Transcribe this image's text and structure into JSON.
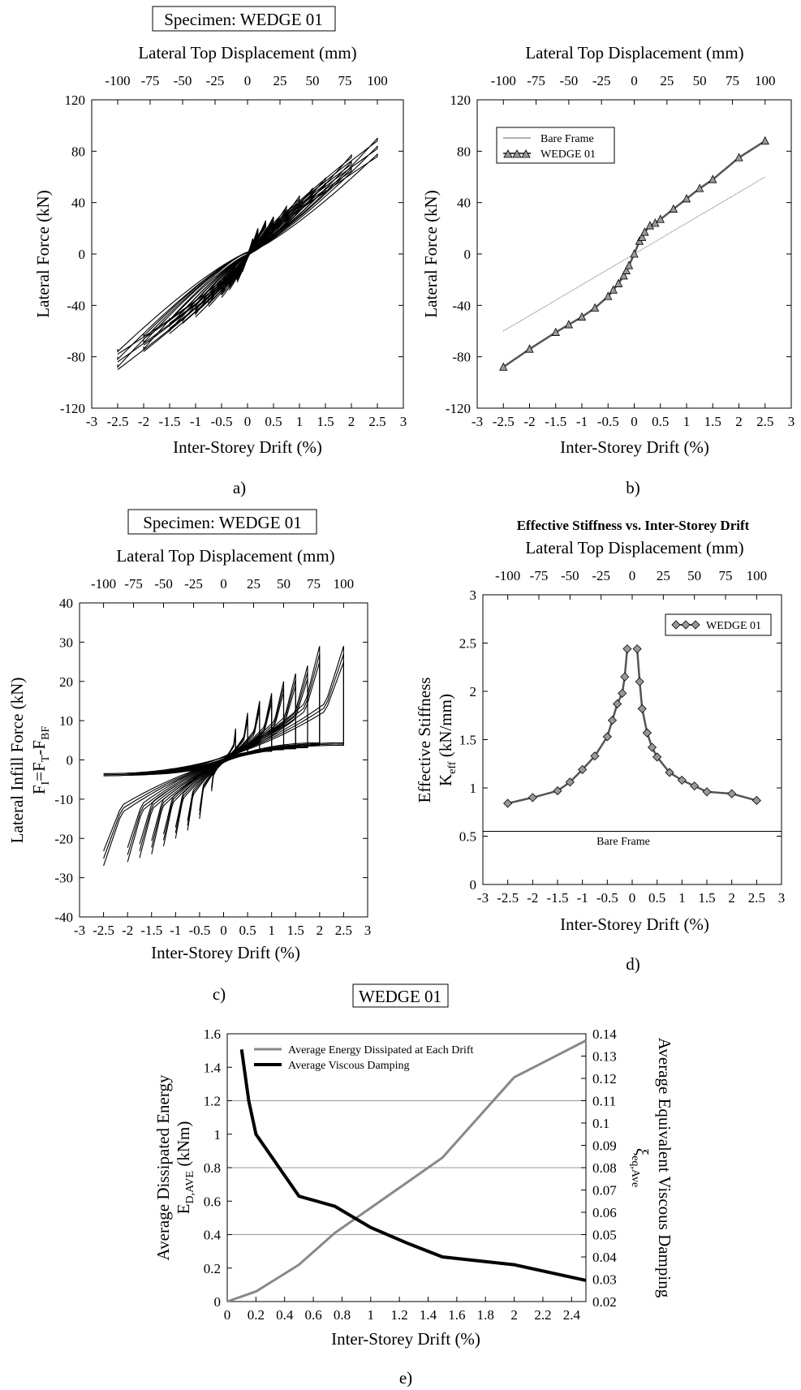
{
  "chart_data": [
    {
      "id": "a",
      "type": "line",
      "title": "Specimen: WEDGE 01",
      "caption": "a)",
      "xlabel": "Inter-Storey Drift (%)",
      "x2label": "Lateral Top Displacement (mm)",
      "ylabel": "Lateral Force (kN)",
      "xlim": [
        -3,
        3
      ],
      "ylim": [
        -120,
        120
      ],
      "xticks": [
        "-3",
        "-2.5",
        "-2",
        "-1.5",
        "-1",
        "-0.5",
        "0",
        "0.5",
        "1",
        "1.5",
        "2",
        "2.5",
        "3"
      ],
      "x2ticks": [
        "-100",
        "-75",
        "-50",
        "-25",
        "0",
        "25",
        "50",
        "75",
        "100"
      ],
      "yticks": [
        "-120",
        "-80",
        "-40",
        "0",
        "40",
        "80",
        "120"
      ],
      "cycle_peaks_drift": [
        0.1,
        0.2,
        0.35,
        0.5,
        0.75,
        1.0,
        1.25,
        1.5,
        2.0,
        2.5
      ],
      "cycle_peaks_force": [
        10,
        18,
        24,
        27,
        35,
        43,
        49,
        57,
        75,
        88
      ],
      "negative_peaks_force": [
        -10,
        -18,
        -24,
        -30,
        -37,
        -45,
        -50,
        -58,
        -72,
        -86
      ]
    },
    {
      "id": "b",
      "type": "line",
      "caption": "b)",
      "xlabel": "Inter-Storey Drift (%)",
      "x2label": "Lateral Top Displacement (mm)",
      "ylabel": "Lateral Force (kN)",
      "xlim": [
        -3,
        3
      ],
      "ylim": [
        -120,
        120
      ],
      "xticks": [
        "-3",
        "-2.5",
        "-2",
        "-1.5",
        "-1",
        "-0.5",
        "0",
        "0.5",
        "1",
        "1.5",
        "2",
        "2.5",
        "3"
      ],
      "x2ticks": [
        "-100",
        "-75",
        "-50",
        "-25",
        "0",
        "25",
        "50",
        "75",
        "100"
      ],
      "yticks": [
        "-120",
        "-80",
        "-40",
        "0",
        "40",
        "80",
        "120"
      ],
      "legend_position": "top-left",
      "series": [
        {
          "name": "Bare Frame",
          "x": [
            -2.5,
            2.5
          ],
          "y": [
            -60,
            60
          ]
        },
        {
          "name": "WEDGE 01",
          "x": [
            -2.5,
            -2,
            -1.5,
            -1.25,
            -1,
            -0.75,
            -0.5,
            -0.4,
            -0.3,
            -0.2,
            -0.15,
            -0.1,
            0,
            0.1,
            0.15,
            0.2,
            0.3,
            0.4,
            0.5,
            0.75,
            1,
            1.25,
            1.5,
            2,
            2.5
          ],
          "y": [
            -88,
            -74,
            -61,
            -55,
            -49,
            -42,
            -33,
            -28,
            -23,
            -17,
            -13,
            -9,
            0,
            10,
            13,
            17,
            22,
            24,
            27,
            35,
            43,
            51,
            58,
            75,
            88
          ]
        }
      ]
    },
    {
      "id": "c",
      "type": "line",
      "title": "Specimen: WEDGE 01",
      "caption": "c)",
      "xlabel": "Inter-Storey Drift (%)",
      "x2label": "Lateral Top Displacement (mm)",
      "ylabel": "Lateral Infill Force (kN)",
      "ylabel2": "F",
      "ylabel2_sub1": "I",
      "ylabel2_mid1": "=F",
      "ylabel2_sub2": "T",
      "ylabel2_mid2": "-F",
      "ylabel2_sub3": "BF",
      "xlim": [
        -3,
        3
      ],
      "ylim": [
        -40,
        40
      ],
      "xticks": [
        "-3",
        "-2.5",
        "-2",
        "-1.5",
        "-1",
        "-0.5",
        "0",
        "0.5",
        "1",
        "1.5",
        "2",
        "2.5",
        "3"
      ],
      "x2ticks": [
        "-100",
        "-75",
        "-50",
        "-25",
        "0",
        "25",
        "50",
        "75",
        "100"
      ],
      "yticks": [
        "-40",
        "-30",
        "-20",
        "-10",
        "0",
        "10",
        "20",
        "30",
        "40"
      ],
      "cycle_peaks_drift": [
        0.25,
        0.5,
        0.75,
        1.0,
        1.25,
        1.5,
        1.75,
        2.0,
        2.5
      ],
      "cycle_peaks_force": [
        8,
        12,
        15,
        17,
        20,
        22,
        24,
        29,
        29
      ],
      "negative_peaks_force": [
        -8,
        -15,
        -18,
        -20,
        -22,
        -24,
        -25,
        -26,
        -27
      ]
    },
    {
      "id": "d",
      "type": "line",
      "title": "Effective Stiffness vs. Inter-Storey Drift",
      "caption": "d)",
      "xlabel": "Inter-Storey Drift (%)",
      "x2label": "Lateral Top Displacement (mm)",
      "ylabel": "Effective Stiffness",
      "ylabel2": "K",
      "ylabel2_sub": "eff",
      "ylabel2_tail": " (kN/mm)",
      "xlim": [
        -3,
        3
      ],
      "ylim": [
        0,
        3
      ],
      "xticks": [
        "-3",
        "-2.5",
        "-2",
        "-1.5",
        "-1",
        "-0.5",
        "0",
        "0.5",
        "1",
        "1.5",
        "2",
        "2.5",
        "3"
      ],
      "x2ticks": [
        "-100",
        "-75",
        "-50",
        "-25",
        "0",
        "25",
        "50",
        "75",
        "100"
      ],
      "yticks": [
        "0",
        "0.5",
        "1",
        "1.5",
        "2",
        "2.5",
        "3"
      ],
      "legend_position": "top-right",
      "annotation": "Bare Frame",
      "bare_frame_level": 0.55,
      "series": [
        {
          "name": "WEDGE 01",
          "x": [
            -2.5,
            -2,
            -1.5,
            -1.25,
            -1,
            -0.75,
            -0.5,
            -0.4,
            -0.3,
            -0.2,
            -0.15,
            -0.1,
            0.1,
            0.15,
            0.2,
            0.3,
            0.4,
            0.5,
            0.75,
            1,
            1.25,
            1.5,
            2,
            2.5
          ],
          "y": [
            0.84,
            0.9,
            0.97,
            1.06,
            1.19,
            1.33,
            1.53,
            1.7,
            1.87,
            1.98,
            2.15,
            2.44,
            2.44,
            2.1,
            1.82,
            1.57,
            1.42,
            1.32,
            1.16,
            1.08,
            1.02,
            0.96,
            0.94,
            0.87
          ]
        }
      ]
    },
    {
      "id": "e",
      "type": "line",
      "title": "WEDGE 01",
      "caption": "e)",
      "xlabel": "Inter-Storey Drift (%)",
      "ylabel": "Average Dissipated Energy",
      "ylabel2": "E",
      "ylabel2_sub": "D,AVE",
      "ylabel2_tail": " (kNm)",
      "y2label": "Average Equivalent Viscous Damping",
      "y2label2": "ξ",
      "y2label2_sub": "eq,Ave",
      "xlim": [
        0,
        2.5
      ],
      "ylim": [
        0,
        1.6
      ],
      "y2lim": [
        0.02,
        0.14
      ],
      "xticks": [
        "0",
        "0.2",
        "0.4",
        "0.6",
        "0.8",
        "1",
        "1.2",
        "1.4",
        "1.6",
        "1.8",
        "2",
        "2.2",
        "2.4"
      ],
      "yticks": [
        "0",
        "0.2",
        "0.4",
        "0.6",
        "0.8",
        "1",
        "1.2",
        "1.4",
        "1.6"
      ],
      "y2ticks": [
        "0.02",
        "0.03",
        "0.04",
        "0.05",
        "0.06",
        "0.07",
        "0.08",
        "0.09",
        "0.1",
        "0.11",
        "0.12",
        "0.13",
        "0.14"
      ],
      "grid_y": [
        0.4,
        0.8,
        1.2
      ],
      "legend_position": "top-left",
      "series": [
        {
          "name": "Average Energy Dissipated at Each Drift",
          "color": "#888888",
          "axis": "left",
          "x": [
            0,
            0.2,
            0.5,
            0.75,
            1.0,
            1.25,
            1.5,
            2.0,
            2.5
          ],
          "y": [
            0,
            0.06,
            0.22,
            0.41,
            0.56,
            0.71,
            0.86,
            1.34,
            1.56
          ]
        },
        {
          "name": "Average Viscous Damping",
          "color": "#000000",
          "axis": "right",
          "x": [
            0.1,
            0.15,
            0.2,
            0.5,
            0.75,
            1.0,
            1.25,
            1.5,
            2.0,
            2.5
          ],
          "y": [
            0.133,
            0.11,
            0.095,
            0.0672,
            0.0627,
            0.0532,
            0.0463,
            0.04,
            0.0365,
            0.0295
          ]
        }
      ]
    }
  ]
}
